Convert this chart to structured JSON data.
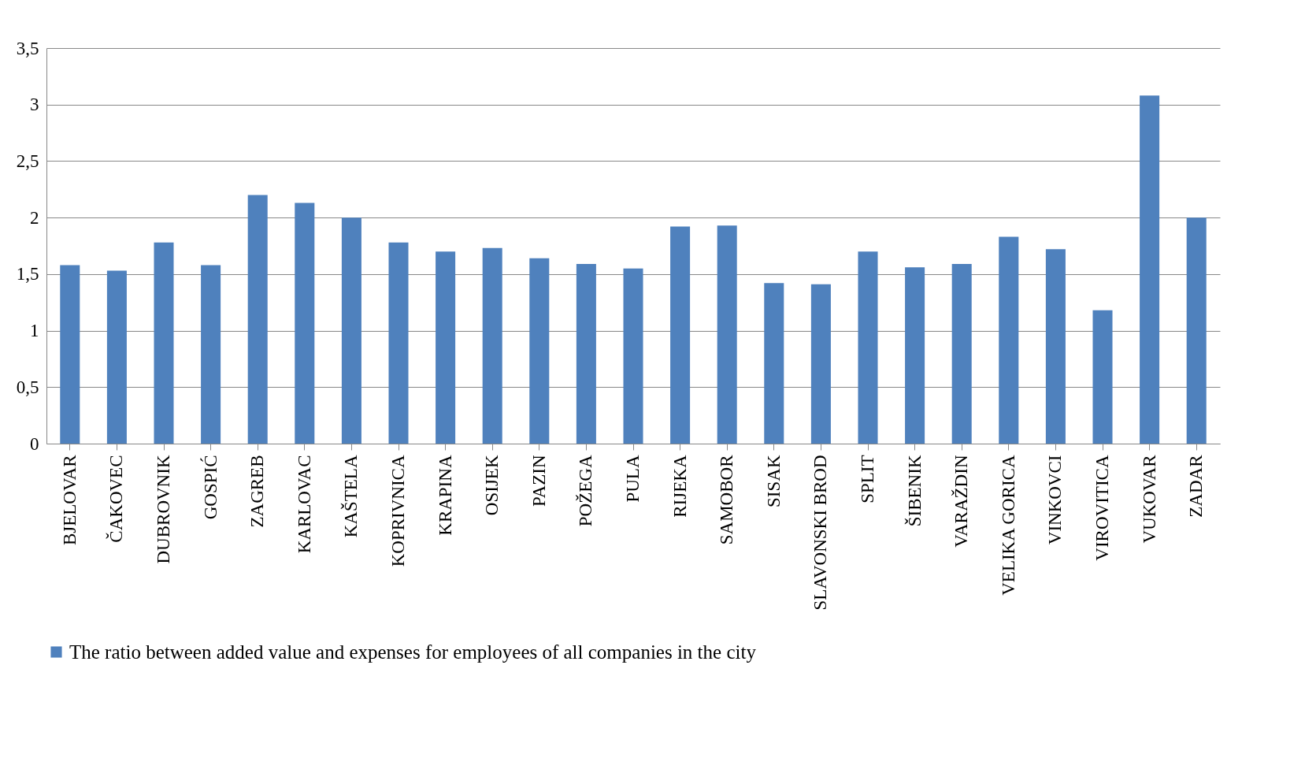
{
  "chart_data": {
    "type": "bar",
    "categories": [
      "BJELOVAR",
      "ČAKOVEC",
      "DUBROVNIK",
      "GOSPIĆ",
      "ZAGREB",
      "KARLOVAC",
      "KAŠTELA",
      "KOPRIVNICA",
      "KRAPINA",
      "OSIJEK",
      "PAZIN",
      "POŽEGA",
      "PULA",
      "RIJEKA",
      "SAMOBOR",
      "SISAK",
      "SLAVONSKI BROD",
      "SPLIT",
      "ŠIBENIK",
      "VARAŽDIN",
      "VELIKA GORICA",
      "VINKOVCI",
      "VIROVITICA",
      "VUKOVAR",
      "ZADAR"
    ],
    "series": [
      {
        "name": "The ratio between added value and expenses for employees of all companies in the city",
        "color": "#4f81bd",
        "values": [
          1.58,
          1.53,
          1.78,
          1.58,
          2.2,
          2.13,
          2.0,
          1.78,
          1.7,
          1.73,
          1.64,
          1.59,
          1.55,
          1.92,
          1.93,
          1.42,
          1.41,
          1.7,
          1.56,
          1.59,
          1.83,
          1.72,
          1.18,
          3.08,
          2.0
        ]
      }
    ],
    "ylim": [
      0,
      3.5
    ],
    "yticks": [
      0,
      {
        "value": 0.5,
        "label": "0,5"
      },
      1,
      {
        "value": 1.5,
        "label": "1,5"
      },
      2,
      {
        "value": 2.5,
        "label": "2,5"
      },
      3,
      {
        "value": 3.5,
        "label": "3,5"
      }
    ],
    "grid": "y",
    "legend": "bottom"
  }
}
